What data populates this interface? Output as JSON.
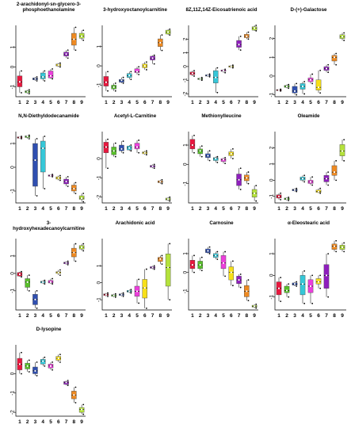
{
  "colors": {
    "1": "#e8173e",
    "2": "#58c02a",
    "3": "#2f4fb0",
    "4": "#36c7d8",
    "5": "#ec3fdc",
    "6": "#f7e019",
    "7": "#8f1fbd",
    "8": "#ee8a22",
    "9": "#b5e23c"
  },
  "chart_data": [
    {
      "type": "boxplot",
      "title": "2-arachidonyl-sn-glycero-3-phosphoethanolamine",
      "categories": [
        "1",
        "2",
        "3",
        "4",
        "5",
        "6",
        "7",
        "8",
        "9"
      ],
      "yticks": [
        "-1",
        "0",
        "1"
      ],
      "ylim": [
        -1.5,
        2.1
      ],
      "boxes": [
        [
          -1.3,
          -1.0,
          -0.75,
          -0.45,
          -0.2
        ],
        [
          -1.35,
          -1.3,
          -1.25,
          -1.2,
          -1.15
        ],
        [
          -0.7,
          -0.65,
          -0.6,
          -0.55,
          -0.5
        ],
        [
          -0.7,
          -0.6,
          -0.5,
          -0.3,
          -0.2
        ],
        [
          -0.6,
          -0.55,
          -0.45,
          -0.2,
          -0.1
        ],
        [
          0.0,
          0.05,
          0.1,
          0.15,
          0.2
        ],
        [
          0.45,
          0.55,
          0.65,
          0.75,
          0.85
        ],
        [
          0.85,
          1.1,
          1.4,
          1.7,
          2.0
        ],
        [
          1.35,
          1.45,
          1.55,
          1.7,
          1.85
        ]
      ]
    },
    {
      "type": "boxplot",
      "title": "3-hydroxyoctanoylcarnitine",
      "categories": [
        "1",
        "2",
        "3",
        "4",
        "5",
        "6",
        "7",
        "8",
        "9"
      ],
      "yticks": [
        "-1",
        "0",
        "1"
      ],
      "ylim": [
        -1.6,
        2.1
      ],
      "boxes": [
        [
          -1.3,
          -1.05,
          -0.85,
          -0.55,
          -0.3
        ],
        [
          -1.3,
          -1.2,
          -1.1,
          -1.0,
          -0.9
        ],
        [
          -0.9,
          -0.85,
          -0.75,
          -0.7,
          -0.6
        ],
        [
          -0.7,
          -0.6,
          -0.5,
          -0.4,
          -0.3
        ],
        [
          -0.45,
          -0.35,
          -0.3,
          -0.15,
          -0.05
        ],
        [
          -0.2,
          -0.1,
          0.0,
          0.1,
          0.2
        ],
        [
          0.1,
          0.3,
          0.4,
          0.5,
          0.55
        ],
        [
          0.8,
          1.0,
          1.2,
          1.4,
          1.6
        ],
        [
          1.6,
          1.65,
          1.75,
          1.85,
          1.9
        ]
      ]
    },
    {
      "type": "boxplot",
      "title": "8Z,11Z,14Z-Eicosatrienoic acid",
      "categories": [
        "1",
        "2",
        "3",
        "4",
        "5",
        "6",
        "7",
        "8",
        "9"
      ],
      "yticks": [
        "-2",
        "-1",
        "0",
        "1",
        "2"
      ],
      "ylim": [
        -2.2,
        3.0
      ],
      "boxes": [
        [
          -0.7,
          -0.6,
          -0.5,
          -0.4,
          -0.3
        ],
        [
          -1.0,
          -0.95,
          -0.9,
          -0.85,
          -0.8
        ],
        [
          -0.75,
          -0.7,
          -0.65,
          -0.6,
          -0.55
        ],
        [
          -1.9,
          -1.2,
          -0.8,
          -0.3,
          -0.1
        ],
        [
          -0.45,
          -0.35,
          -0.3,
          -0.25,
          -0.2
        ],
        [
          -0.1,
          -0.05,
          0.0,
          0.05,
          0.1
        ],
        [
          1.2,
          1.4,
          1.6,
          1.9,
          2.2
        ],
        [
          2.0,
          2.1,
          2.2,
          2.35,
          2.5
        ],
        [
          2.6,
          2.65,
          2.8,
          2.9,
          3.0
        ]
      ]
    },
    {
      "type": "boxplot",
      "title": "D-(+)-Galactose",
      "categories": [
        "1",
        "2",
        "3",
        "4",
        "5",
        "6",
        "7",
        "8",
        "9"
      ],
      "yticks": [
        "-1",
        "0",
        "1",
        "2"
      ],
      "ylim": [
        -1.1,
        2.7
      ],
      "boxes": [
        [
          -0.8,
          -0.78,
          -0.75,
          -0.72,
          -0.7
        ],
        [
          -0.65,
          -0.6,
          -0.55,
          -0.5,
          -0.45
        ],
        [
          -1.0,
          -0.9,
          -0.8,
          -0.55,
          -0.4
        ],
        [
          -0.95,
          -0.7,
          -0.55,
          -0.4,
          -0.3
        ],
        [
          -0.4,
          -0.3,
          -0.2,
          -0.1,
          0.1
        ],
        [
          -0.9,
          -0.75,
          -0.6,
          -0.2,
          0.3
        ],
        [
          0.2,
          0.3,
          0.4,
          0.5,
          0.6
        ],
        [
          0.6,
          0.8,
          1.0,
          1.1,
          1.2
        ],
        [
          1.9,
          2.0,
          2.1,
          2.2,
          2.3
        ]
      ]
    },
    {
      "type": "boxplot",
      "title": "N,N-Diethyldodecanamide",
      "categories": [
        "1",
        "2",
        "3",
        "4",
        "5",
        "6",
        "7",
        "8",
        "9"
      ],
      "yticks": [
        "-1",
        "0",
        "1"
      ],
      "ylim": [
        -1.5,
        1.5
      ],
      "boxes": [
        [
          1.2,
          1.22,
          1.25,
          1.28,
          1.3
        ],
        [
          1.2,
          1.25,
          1.3,
          1.32,
          1.35
        ],
        [
          -1.2,
          -0.8,
          0.3,
          1.0,
          1.2
        ],
        [
          -0.9,
          -0.2,
          0.8,
          1.1,
          1.3
        ],
        [
          -0.4,
          -0.38,
          -0.35,
          -0.32,
          -0.3
        ],
        [
          -0.55,
          -0.5,
          -0.45,
          -0.4,
          -0.35
        ],
        [
          -0.8,
          -0.7,
          -0.6,
          -0.5,
          -0.4
        ],
        [
          -1.1,
          -1.0,
          -0.9,
          -0.75,
          -0.65
        ],
        [
          -1.45,
          -1.35,
          -1.3,
          -1.2,
          -1.1
        ]
      ]
    },
    {
      "type": "boxplot",
      "title": "Acetyl-L-Carnitine",
      "categories": [
        "1",
        "2",
        "3",
        "4",
        "5",
        "6",
        "7",
        "8",
        "9"
      ],
      "yticks": [
        "-2",
        "-1",
        "0"
      ],
      "ylim": [
        -2.3,
        1.4
      ],
      "boxes": [
        [
          -0.5,
          0.3,
          0.6,
          0.85,
          1.0
        ],
        [
          0.1,
          0.2,
          0.4,
          0.6,
          0.8
        ],
        [
          0.3,
          0.4,
          0.5,
          0.7,
          0.9
        ],
        [
          0.4,
          0.45,
          0.55,
          0.65,
          0.7
        ],
        [
          0.3,
          0.5,
          0.6,
          0.8,
          0.95
        ],
        [
          0.2,
          0.25,
          0.3,
          0.35,
          0.4
        ],
        [
          -0.5,
          -0.45,
          -0.4,
          -0.35,
          -0.3
        ],
        [
          -1.3,
          -1.25,
          -1.2,
          -1.15,
          -1.1
        ],
        [
          -2.2,
          -2.15,
          -2.1,
          -2.05,
          -2.0
        ]
      ]
    },
    {
      "type": "boxplot",
      "title": "Methionylleucine",
      "categories": [
        "1",
        "2",
        "3",
        "4",
        "5",
        "6",
        "7",
        "8",
        "9"
      ],
      "yticks": [
        "-1",
        "0",
        "1"
      ],
      "ylim": [
        -2.0,
        1.7
      ],
      "boxes": [
        [
          0.6,
          0.8,
          1.0,
          1.3,
          1.5
        ],
        [
          0.4,
          0.55,
          0.7,
          0.8,
          0.95
        ],
        [
          0.2,
          0.35,
          0.45,
          0.55,
          0.7
        ],
        [
          0.1,
          0.2,
          0.3,
          0.35,
          0.4
        ],
        [
          0.05,
          0.15,
          0.25,
          0.3,
          0.35
        ],
        [
          0.3,
          0.45,
          0.55,
          0.65,
          0.8
        ],
        [
          -1.3,
          -1.1,
          -0.8,
          -0.5,
          -0.2
        ],
        [
          -1.0,
          -0.85,
          -0.7,
          -0.55,
          -0.4
        ],
        [
          -1.9,
          -1.7,
          -1.5,
          -1.3,
          -1.1
        ]
      ]
    },
    {
      "type": "boxplot",
      "title": "Oleamide",
      "categories": [
        "1",
        "2",
        "3",
        "4",
        "5",
        "6",
        "7",
        "8",
        "9"
      ],
      "yticks": [
        "-1",
        "0",
        "1",
        "2"
      ],
      "ylim": [
        -1.4,
        3.0
      ],
      "boxes": [
        [
          -1.2,
          -1.1,
          -1.0,
          -0.9,
          -0.8
        ],
        [
          -1.25,
          -1.2,
          -1.15,
          -1.1,
          -1.05
        ],
        [
          -0.7,
          -0.65,
          -0.6,
          -0.55,
          -0.5
        ],
        [
          -0.1,
          0.0,
          0.1,
          0.2,
          0.3
        ],
        [
          -0.3,
          -0.2,
          -0.1,
          0.0,
          0.2
        ],
        [
          -0.8,
          -0.75,
          -0.7,
          -0.6,
          -0.5
        ],
        [
          -0.3,
          -0.1,
          0.1,
          0.3,
          0.5
        ],
        [
          0.0,
          0.3,
          0.5,
          0.9,
          1.2
        ],
        [
          1.2,
          1.5,
          1.8,
          2.2,
          2.5
        ]
      ]
    },
    {
      "type": "boxplot",
      "title": "3-hydroxyhexadecanoylcarnitine",
      "categories": [
        "1",
        "2",
        "3",
        "4",
        "5",
        "6",
        "7",
        "8",
        "9"
      ],
      "yticks": [
        "-1",
        "0",
        "1"
      ],
      "ylim": [
        -2.1,
        2.0
      ],
      "boxes": [
        [
          -0.2,
          -0.15,
          -0.05,
          0.05,
          0.1
        ],
        [
          -1.0,
          -0.8,
          -0.5,
          -0.3,
          -0.1
        ],
        [
          -2.0,
          -1.8,
          -1.5,
          -1.2,
          -1.0
        ],
        [
          -0.6,
          -0.55,
          -0.5,
          -0.45,
          -0.4
        ],
        [
          -0.6,
          -0.55,
          -0.5,
          -0.4,
          -0.3
        ],
        [
          -0.1,
          0.0,
          0.05,
          0.1,
          0.2
        ],
        [
          0.5,
          0.55,
          0.6,
          0.65,
          0.7
        ],
        [
          0.7,
          0.95,
          1.2,
          1.45,
          1.7
        ],
        [
          1.3,
          1.4,
          1.5,
          1.6,
          1.7
        ]
      ]
    },
    {
      "type": "boxplot",
      "title": "Arachidonic acid",
      "categories": [
        "1",
        "2",
        "3",
        "4",
        "5",
        "6",
        "7",
        "8",
        "9"
      ],
      "yticks": [
        "-1",
        "0",
        "1"
      ],
      "ylim": [
        -1.6,
        2.6
      ],
      "boxes": [
        [
          -0.8,
          -0.75,
          -0.7,
          -0.65,
          -0.6
        ],
        [
          -0.85,
          -0.8,
          -0.75,
          -0.7,
          -0.65
        ],
        [
          -0.8,
          -0.75,
          -0.7,
          -0.65,
          -0.6
        ],
        [
          -0.6,
          -0.55,
          -0.5,
          -0.45,
          -0.4
        ],
        [
          -1.2,
          -0.8,
          -0.5,
          -0.2,
          0.2
        ],
        [
          -1.5,
          -0.9,
          -0.3,
          0.2,
          0.8
        ],
        [
          0.8,
          0.85,
          0.9,
          0.95,
          1.0
        ],
        [
          1.1,
          1.25,
          1.4,
          1.5,
          1.6
        ],
        [
          -1.0,
          -0.2,
          0.9,
          1.7,
          2.3
        ]
      ]
    },
    {
      "type": "boxplot",
      "title": "Carnosine",
      "categories": [
        "1",
        "2",
        "3",
        "4",
        "5",
        "6",
        "7",
        "8",
        "9"
      ],
      "yticks": [
        "-1",
        "0",
        "1"
      ],
      "ylim": [
        -2.0,
        1.8
      ],
      "boxes": [
        [
          0.0,
          0.2,
          0.4,
          0.65,
          0.9
        ],
        [
          0.1,
          0.2,
          0.4,
          0.6,
          0.8
        ],
        [
          1.0,
          1.05,
          1.15,
          1.25,
          1.35
        ],
        [
          0.7,
          0.8,
          0.9,
          1.0,
          1.1
        ],
        [
          -0.2,
          0.2,
          0.5,
          0.9,
          1.1
        ],
        [
          -0.7,
          -0.4,
          0.0,
          0.3,
          0.6
        ],
        [
          -0.8,
          -0.6,
          -0.4,
          -0.2,
          -0.1
        ],
        [
          -1.5,
          -1.3,
          -1.0,
          -0.7,
          -0.4
        ],
        [
          -1.9,
          -1.85,
          -1.8,
          -1.75,
          -1.7
        ]
      ]
    },
    {
      "type": "boxplot",
      "title": "α-Eleostearic acid",
      "categories": [
        "1",
        "2",
        "3",
        "4",
        "5",
        "6",
        "7",
        "8",
        "9"
      ],
      "yticks": [
        "-1",
        "0",
        "1"
      ],
      "ylim": [
        -1.6,
        1.7
      ],
      "boxes": [
        [
          -1.2,
          -0.9,
          -0.6,
          -0.3,
          -0.1
        ],
        [
          -1.0,
          -0.8,
          -0.7,
          -0.5,
          -0.4
        ],
        [
          -0.5,
          -0.45,
          -0.4,
          -0.35,
          -0.3
        ],
        [
          -1.3,
          -0.9,
          -0.4,
          0.0,
          0.2
        ],
        [
          -1.3,
          -0.8,
          -0.5,
          -0.2,
          0.0
        ],
        [
          -0.6,
          -0.4,
          -0.3,
          -0.15,
          0.0
        ],
        [
          -1.0,
          -0.6,
          0.0,
          0.5,
          1.0
        ],
        [
          1.1,
          1.2,
          1.35,
          1.45,
          1.6
        ],
        [
          1.1,
          1.2,
          1.3,
          1.4,
          1.5
        ]
      ]
    },
    {
      "type": "boxplot",
      "title": "D-lysopine",
      "categories": [
        "1",
        "2",
        "3",
        "4",
        "5",
        "6",
        "7",
        "8",
        "9"
      ],
      "yticks": [
        "-2",
        "-1",
        "0"
      ],
      "ylim": [
        -2.2,
        1.5
      ],
      "boxes": [
        [
          0.0,
          0.2,
          0.5,
          0.8,
          1.1
        ],
        [
          0.1,
          0.25,
          0.4,
          0.55,
          0.7
        ],
        [
          -0.1,
          0.0,
          0.15,
          0.35,
          0.6
        ],
        [
          0.4,
          0.5,
          0.65,
          0.75,
          0.85
        ],
        [
          0.2,
          0.3,
          0.4,
          0.5,
          0.6
        ],
        [
          0.6,
          0.7,
          0.8,
          0.9,
          1.0
        ],
        [
          -0.6,
          -0.55,
          -0.45,
          -0.4,
          -0.35
        ],
        [
          -1.5,
          -1.3,
          -1.1,
          -0.9,
          -0.7
        ],
        [
          -2.1,
          -2.0,
          -1.85,
          -1.75,
          -1.6
        ]
      ]
    }
  ]
}
